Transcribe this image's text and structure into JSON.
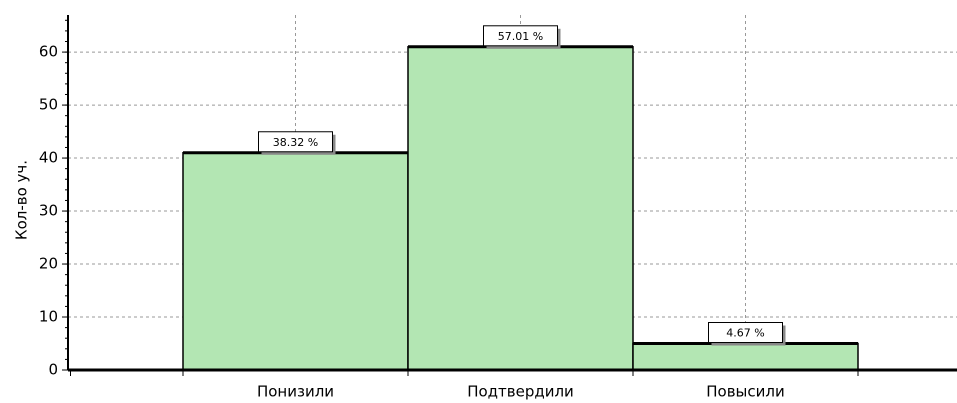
{
  "chart_data": {
    "type": "bar",
    "y_label": "Кол-во уч.",
    "categories": [
      "Понизили",
      "Подтвердили",
      "Повысили"
    ],
    "values": [
      41,
      61,
      5
    ],
    "value_labels": [
      "38.32 %",
      "57.01 %",
      "4.67 %"
    ],
    "color": "#b3e6b3",
    "ylim": [
      0,
      67
    ],
    "yticks": [
      0,
      10,
      20,
      30,
      40,
      50,
      60
    ],
    "grid": true
  }
}
